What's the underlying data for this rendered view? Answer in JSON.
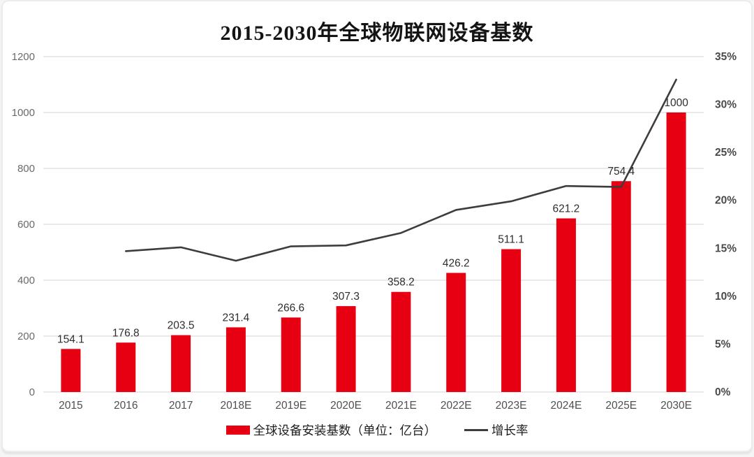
{
  "window": {
    "background": "#ffffff",
    "card_border_color": "#ececec"
  },
  "chart_data": {
    "type": "bar+line",
    "title": "2015-2030年全球物联网设备基数",
    "categories": [
      "2015",
      "2016",
      "2017",
      "2018E",
      "2019E",
      "2020E",
      "2021E",
      "2022E",
      "2023E",
      "2024E",
      "2025E",
      "2030E"
    ],
    "series": [
      {
        "name": "全球设备安装基数（单位：亿台）",
        "type": "bar",
        "axis": "left",
        "color": "#e60012",
        "values": [
          154.1,
          176.8,
          203.5,
          231.4,
          266.6,
          307.3,
          358.2,
          426.2,
          511.1,
          621.2,
          754.4,
          1000
        ],
        "value_labels": [
          "154.1",
          "176.8",
          "203.5",
          "231.4",
          "266.6",
          "307.3",
          "358.2",
          "426.2",
          "511.1",
          "621.2",
          "754.4",
          "1000"
        ]
      },
      {
        "name": "增长率",
        "type": "line",
        "axis": "right",
        "color": "#3d3d3d",
        "values_percent": [
          null,
          14.7,
          15.1,
          13.7,
          15.2,
          15.3,
          16.6,
          19.0,
          19.9,
          21.5,
          21.4,
          32.6
        ]
      }
    ],
    "left_axis": {
      "ticks": [
        "0",
        "200",
        "400",
        "600",
        "800",
        "1000",
        "1200"
      ],
      "min": 0,
      "max": 1200,
      "tick_step": 200
    },
    "right_axis": {
      "ticks": [
        "0%",
        "5%",
        "10%",
        "15%",
        "20%",
        "25%",
        "30%",
        "35%"
      ],
      "min": 0,
      "max": 35,
      "tick_step": 5
    },
    "grid": true,
    "legend_position": "bottom"
  },
  "styles": {
    "grid_color": "#dcdcdc",
    "left_tick_color": "#6a6a6a",
    "right_tick_color": "#4a4a4a",
    "xlabel_color": "#4f4f4f",
    "value_label_color": "#2e2e2e",
    "title_color": "#141414"
  }
}
